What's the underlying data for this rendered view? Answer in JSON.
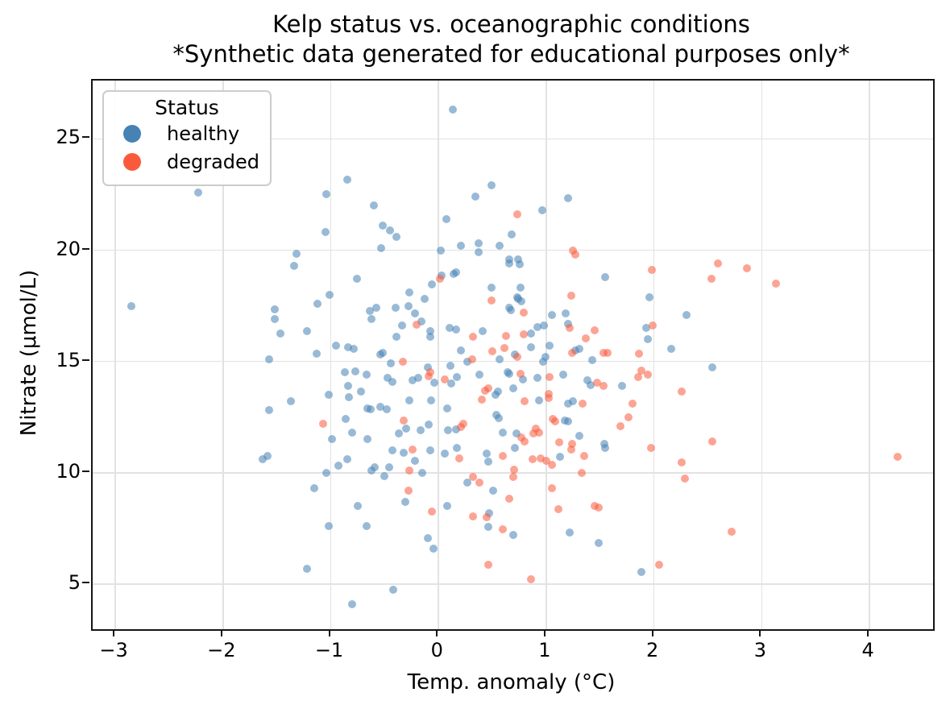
{
  "title": {
    "line1": "Kelp status vs. oceanographic conditions",
    "line2": "*Synthetic data generated for educational purposes only*"
  },
  "axes": {
    "xlabel": "Temp. anomaly (°C)",
    "ylabel": "Nitrate (μmol/L)",
    "x_ticks": [
      {
        "label": "−3",
        "value": -3
      },
      {
        "label": "−2",
        "value": -2
      },
      {
        "label": "−1",
        "value": -1
      },
      {
        "label": "0",
        "value": 0
      },
      {
        "label": "1",
        "value": 1
      },
      {
        "label": "2",
        "value": 2
      },
      {
        "label": "3",
        "value": 3
      },
      {
        "label": "4",
        "value": 4
      }
    ],
    "y_ticks": [
      {
        "label": "5",
        "value": 5
      },
      {
        "label": "10",
        "value": 10
      },
      {
        "label": "15",
        "value": 15
      },
      {
        "label": "20",
        "value": 20
      },
      {
        "label": "25",
        "value": 25
      }
    ],
    "grid": true,
    "grid_color": "#e2e2e2"
  },
  "legend": {
    "title": "Status",
    "position": "upper left",
    "items": [
      {
        "label": "healthy",
        "color": "#4682b4"
      },
      {
        "label": "degraded",
        "color": "#fa5a3c"
      }
    ]
  },
  "chart_data": {
    "type": "scatter",
    "title": "Kelp status vs. oceanographic conditions\n*Synthetic data generated for educational purposes only*",
    "xlabel": "Temp. anomaly (°C)",
    "ylabel": "Nitrate (μmol/L)",
    "xlim": [
      -3.21,
      4.59
    ],
    "ylim": [
      2.97,
      27.62
    ],
    "marker_opacity": 0.55,
    "marker_size_px": 10,
    "series": [
      {
        "name": "healthy",
        "color": "#4682b4",
        "points": [
          [
            0.13,
            26.3
          ],
          [
            -0.85,
            23.15
          ],
          [
            -1.04,
            22.5
          ],
          [
            -2.23,
            22.6
          ],
          [
            -0.6,
            22.0
          ],
          [
            0.49,
            22.9
          ],
          [
            0.34,
            22.4
          ],
          [
            1.2,
            22.35
          ],
          [
            -0.52,
            21.1
          ],
          [
            -0.45,
            20.9
          ],
          [
            -0.39,
            20.6
          ],
          [
            0.07,
            21.4
          ],
          [
            0.96,
            21.8
          ],
          [
            -1.05,
            20.8
          ],
          [
            -0.53,
            20.1
          ],
          [
            0.02,
            20.0
          ],
          [
            0.21,
            20.2
          ],
          [
            0.37,
            20.3
          ],
          [
            0.37,
            19.9
          ],
          [
            0.57,
            20.2
          ],
          [
            0.68,
            20.7
          ],
          [
            0.66,
            19.6
          ],
          [
            0.74,
            19.6
          ],
          [
            -1.32,
            19.85
          ],
          [
            -1.34,
            19.3
          ],
          [
            0.66,
            19.4
          ],
          [
            0.75,
            19.35
          ],
          [
            0.16,
            19.0
          ],
          [
            0.03,
            18.85
          ],
          [
            0.14,
            18.95
          ],
          [
            -0.06,
            18.45
          ],
          [
            1.55,
            18.8
          ],
          [
            0.49,
            18.3
          ],
          [
            0.76,
            18.3
          ],
          [
            -0.27,
            18.1
          ],
          [
            -0.76,
            18.7
          ],
          [
            -1.01,
            18.0
          ],
          [
            -1.12,
            17.6
          ],
          [
            -2.85,
            17.5
          ],
          [
            -1.52,
            17.35
          ],
          [
            -1.52,
            16.9
          ],
          [
            -1.47,
            16.25
          ],
          [
            -1.22,
            16.35
          ],
          [
            -0.13,
            17.8
          ],
          [
            -0.4,
            17.4
          ],
          [
            -0.28,
            17.5
          ],
          [
            -0.58,
            17.4
          ],
          [
            -0.62,
            16.9
          ],
          [
            -0.64,
            17.25
          ],
          [
            0.73,
            17.9
          ],
          [
            0.77,
            17.7
          ],
          [
            0.74,
            17.8
          ],
          [
            0.66,
            17.4
          ],
          [
            0.67,
            17.3
          ],
          [
            1.05,
            17.1
          ],
          [
            1.18,
            17.15
          ],
          [
            1.2,
            16.7
          ],
          [
            -0.22,
            17.15
          ],
          [
            -0.16,
            16.8
          ],
          [
            -0.34,
            16.6
          ],
          [
            -0.08,
            16.35
          ],
          [
            -0.08,
            16.1
          ],
          [
            -0.39,
            16.1
          ],
          [
            0.1,
            16.5
          ],
          [
            0.16,
            16.45
          ],
          [
            0.41,
            16.35
          ],
          [
            0.86,
            16.25
          ],
          [
            0.92,
            16.55
          ],
          [
            0.98,
            16.6
          ],
          [
            1.96,
            17.9
          ],
          [
            2.3,
            17.1
          ],
          [
            1.93,
            16.5
          ],
          [
            1.94,
            16.0
          ],
          [
            -1.13,
            15.35
          ],
          [
            -0.95,
            15.7
          ],
          [
            -0.84,
            15.65
          ],
          [
            -0.79,
            15.55
          ],
          [
            -1.57,
            15.1
          ],
          [
            -0.52,
            15.4
          ],
          [
            -0.54,
            15.3
          ],
          [
            -0.44,
            14.9
          ],
          [
            -0.1,
            14.75
          ],
          [
            0.11,
            14.8
          ],
          [
            0.21,
            15.5
          ],
          [
            0.27,
            15.0
          ],
          [
            0.71,
            15.3
          ],
          [
            0.57,
            15.1
          ],
          [
            0.86,
            15.65
          ],
          [
            1.03,
            15.7
          ],
          [
            0.97,
            15.0
          ],
          [
            0.99,
            15.2
          ],
          [
            1.27,
            15.5
          ],
          [
            1.31,
            15.55
          ],
          [
            1.43,
            15.05
          ],
          [
            2.16,
            15.55
          ],
          [
            -0.87,
            14.5
          ],
          [
            -0.77,
            14.55
          ],
          [
            -0.67,
            14.4
          ],
          [
            -0.84,
            13.9
          ],
          [
            -0.72,
            13.65
          ],
          [
            -0.83,
            13.4
          ],
          [
            -1.02,
            13.5
          ],
          [
            -1.37,
            13.2
          ],
          [
            -0.47,
            14.25
          ],
          [
            -0.43,
            14.1
          ],
          [
            -0.24,
            14.15
          ],
          [
            -0.19,
            14.25
          ],
          [
            -0.04,
            14.05
          ],
          [
            0.12,
            14.0
          ],
          [
            0.17,
            14.3
          ],
          [
            0.38,
            14.4
          ],
          [
            0.64,
            14.5
          ],
          [
            0.66,
            14.45
          ],
          [
            0.78,
            14.2
          ],
          [
            0.92,
            14.25
          ],
          [
            1.16,
            14.4
          ],
          [
            1.38,
            14.15
          ],
          [
            1.41,
            13.95
          ],
          [
            1.7,
            13.9
          ],
          [
            2.54,
            14.75
          ],
          [
            -1.57,
            12.8
          ],
          [
            -0.66,
            12.9
          ],
          [
            -0.63,
            12.85
          ],
          [
            -0.54,
            12.95
          ],
          [
            -0.48,
            12.85
          ],
          [
            -0.27,
            13.25
          ],
          [
            -0.07,
            13.25
          ],
          [
            0.08,
            12.9
          ],
          [
            0.53,
            13.5
          ],
          [
            0.55,
            13.65
          ],
          [
            0.69,
            13.8
          ],
          [
            0.93,
            13.25
          ],
          [
            1.2,
            13.1
          ],
          [
            1.25,
            13.2
          ],
          [
            -0.86,
            12.4
          ],
          [
            -0.8,
            11.8
          ],
          [
            -0.99,
            11.5
          ],
          [
            -0.66,
            11.5
          ],
          [
            -0.3,
            12.0
          ],
          [
            -0.09,
            12.15
          ],
          [
            0.16,
            11.95
          ],
          [
            0.09,
            11.9
          ],
          [
            -0.37,
            11.75
          ],
          [
            -0.17,
            11.9
          ],
          [
            0.54,
            12.6
          ],
          [
            0.56,
            12.45
          ],
          [
            0.6,
            11.8
          ],
          [
            0.72,
            11.75
          ],
          [
            1.17,
            12.35
          ],
          [
            1.2,
            12.3
          ],
          [
            1.31,
            11.65
          ],
          [
            1.54,
            11.3
          ],
          [
            -0.43,
            11.0
          ],
          [
            -0.32,
            10.9
          ],
          [
            -0.08,
            11.0
          ],
          [
            0.06,
            10.85
          ],
          [
            0.17,
            11.1
          ],
          [
            -0.22,
            10.55
          ],
          [
            -0.59,
            10.25
          ],
          [
            -0.46,
            10.25
          ],
          [
            -0.5,
            9.85
          ],
          [
            0.45,
            10.85
          ],
          [
            0.46,
            10.5
          ],
          [
            0.71,
            11.1
          ],
          [
            1.13,
            10.7
          ],
          [
            1.55,
            11.1
          ],
          [
            -1.63,
            10.6
          ],
          [
            -1.59,
            10.75
          ],
          [
            -1.04,
            10.0
          ],
          [
            -0.93,
            10.3
          ],
          [
            -0.85,
            10.6
          ],
          [
            -0.62,
            10.1
          ],
          [
            -0.15,
            10.0
          ],
          [
            -1.15,
            9.3
          ],
          [
            0.27,
            9.55
          ],
          [
            0.51,
            9.2
          ],
          [
            -0.75,
            8.5
          ],
          [
            -0.31,
            8.7
          ],
          [
            0.08,
            8.5
          ],
          [
            0.47,
            8.2
          ],
          [
            -1.02,
            7.6
          ],
          [
            -0.67,
            7.6
          ],
          [
            0.46,
            7.55
          ],
          [
            0.69,
            7.2
          ],
          [
            1.22,
            7.3
          ],
          [
            1.49,
            6.85
          ],
          [
            -0.1,
            7.05
          ],
          [
            -0.05,
            6.6
          ],
          [
            -1.22,
            5.7
          ],
          [
            1.88,
            5.55
          ],
          [
            -0.42,
            4.75
          ],
          [
            -0.8,
            4.1
          ]
        ]
      },
      {
        "name": "degraded",
        "color": "#fa5a3c",
        "points": [
          [
            0.73,
            21.6
          ],
          [
            1.25,
            20.0
          ],
          [
            1.27,
            19.8
          ],
          [
            1.98,
            19.1
          ],
          [
            2.53,
            18.7
          ],
          [
            2.59,
            19.4
          ],
          [
            2.86,
            19.2
          ],
          [
            3.13,
            18.5
          ],
          [
            0.01,
            18.7
          ],
          [
            0.49,
            17.75
          ],
          [
            0.79,
            17.2
          ],
          [
            1.23,
            17.95
          ],
          [
            1.22,
            16.5
          ],
          [
            1.99,
            16.6
          ],
          [
            -0.2,
            16.65
          ],
          [
            0.32,
            16.1
          ],
          [
            0.63,
            16.15
          ],
          [
            0.79,
            16.2
          ],
          [
            1.45,
            16.4
          ],
          [
            1.37,
            16.05
          ],
          [
            1.53,
            15.4
          ],
          [
            -0.33,
            15.0
          ],
          [
            0.31,
            15.1
          ],
          [
            0.5,
            15.45
          ],
          [
            0.61,
            15.6
          ],
          [
            0.73,
            15.2
          ],
          [
            1.24,
            15.4
          ],
          [
            1.57,
            15.4
          ],
          [
            1.86,
            15.35
          ],
          [
            -0.09,
            14.35
          ],
          [
            -0.08,
            14.5
          ],
          [
            0.06,
            14.2
          ],
          [
            0.46,
            13.8
          ],
          [
            0.76,
            14.45
          ],
          [
            1.03,
            14.3
          ],
          [
            1.47,
            14.05
          ],
          [
            1.53,
            13.9
          ],
          [
            1.85,
            14.3
          ],
          [
            1.88,
            14.6
          ],
          [
            1.94,
            14.4
          ],
          [
            0.43,
            13.7
          ],
          [
            0.4,
            13.3
          ],
          [
            0.8,
            13.2
          ],
          [
            1.02,
            13.55
          ],
          [
            1.02,
            13.35
          ],
          [
            1.34,
            13.1
          ],
          [
            1.8,
            13.1
          ],
          [
            2.26,
            13.65
          ],
          [
            -1.07,
            12.2
          ],
          [
            -0.32,
            12.35
          ],
          [
            0.23,
            12.2
          ],
          [
            0.21,
            12.05
          ],
          [
            0.88,
            11.75
          ],
          [
            0.9,
            12.0
          ],
          [
            0.93,
            11.8
          ],
          [
            1.06,
            12.4
          ],
          [
            1.08,
            12.3
          ],
          [
            1.69,
            12.1
          ],
          [
            1.76,
            12.5
          ],
          [
            0.77,
            11.6
          ],
          [
            0.8,
            11.4
          ],
          [
            1.12,
            11.35
          ],
          [
            1.24,
            11.3
          ],
          [
            2.54,
            11.4
          ],
          [
            -0.24,
            11.05
          ],
          [
            0.19,
            10.65
          ],
          [
            0.6,
            10.75
          ],
          [
            0.7,
            10.15
          ],
          [
            0.87,
            10.6
          ],
          [
            0.95,
            10.65
          ],
          [
            1.0,
            10.55
          ],
          [
            1.05,
            10.35
          ],
          [
            1.23,
            11.05
          ],
          [
            1.35,
            10.75
          ],
          [
            1.33,
            10.0
          ],
          [
            1.97,
            11.1
          ],
          [
            2.26,
            10.45
          ],
          [
            2.29,
            9.75
          ],
          [
            4.26,
            10.7
          ],
          [
            -0.27,
            10.1
          ],
          [
            0.69,
            9.8
          ],
          [
            -0.28,
            9.2
          ],
          [
            0.32,
            9.8
          ],
          [
            0.38,
            9.55
          ],
          [
            0.66,
            8.85
          ],
          [
            1.05,
            9.3
          ],
          [
            -0.06,
            8.25
          ],
          [
            0.32,
            8.05
          ],
          [
            0.45,
            8.0
          ],
          [
            1.11,
            8.35
          ],
          [
            1.45,
            8.5
          ],
          [
            1.49,
            8.45
          ],
          [
            0.6,
            7.45
          ],
          [
            2.72,
            7.35
          ],
          [
            0.46,
            5.85
          ],
          [
            0.86,
            5.2
          ],
          [
            2.05,
            5.85
          ]
        ]
      }
    ]
  }
}
